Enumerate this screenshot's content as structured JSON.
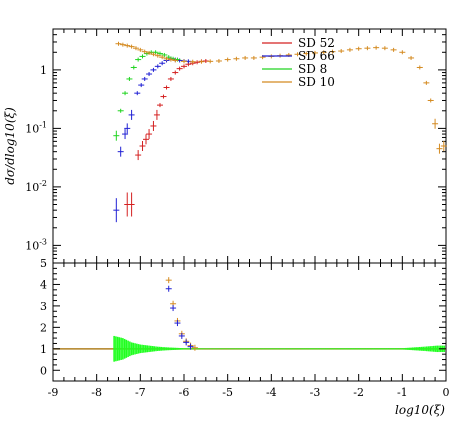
{
  "chart_data": [
    {
      "type": "scatter",
      "panel": "main",
      "ylabel": "dσ/dlog10(ξ)",
      "yscale": "log",
      "xlim": [
        -9,
        0
      ],
      "ylim": [
        0.0005,
        5
      ],
      "ytick_labels": [
        {
          "value": 1,
          "label": "1"
        },
        {
          "value": 0.1,
          "label": "10-1"
        },
        {
          "value": 0.01,
          "label": "10-2"
        },
        {
          "value": 0.001,
          "label": "10-3"
        }
      ],
      "legend_position": "top-right",
      "series": [
        {
          "name": "SD 52",
          "color": "#d42020",
          "points": [
            [
              -7.3,
              0.005
            ],
            [
              -7.2,
              0.005
            ],
            [
              -7.05,
              0.035
            ],
            [
              -6.95,
              0.05
            ],
            [
              -6.87,
              0.065
            ],
            [
              -6.8,
              0.08
            ],
            [
              -6.7,
              0.11
            ],
            [
              -6.62,
              0.17
            ],
            [
              -6.55,
              0.25
            ],
            [
              -6.47,
              0.35
            ],
            [
              -6.4,
              0.5
            ],
            [
              -6.3,
              0.7
            ],
            [
              -6.2,
              0.9
            ],
            [
              -6.1,
              1.05
            ],
            [
              -6.0,
              1.15
            ],
            [
              -5.9,
              1.25
            ],
            [
              -5.8,
              1.3
            ],
            [
              -5.7,
              1.35
            ],
            [
              -5.6,
              1.4
            ],
            [
              -5.5,
              1.42
            ]
          ]
        },
        {
          "name": "SD 66",
          "color": "#2020d4",
          "points": [
            [
              -7.55,
              0.004
            ],
            [
              -7.45,
              0.04
            ],
            [
              -7.35,
              0.08
            ],
            [
              -7.3,
              0.1
            ],
            [
              -7.2,
              0.17
            ],
            [
              -7.07,
              0.4
            ],
            [
              -6.98,
              0.55
            ],
            [
              -6.9,
              0.7
            ],
            [
              -6.8,
              0.85
            ],
            [
              -6.7,
              1.0
            ],
            [
              -6.6,
              1.15
            ],
            [
              -6.5,
              1.3
            ],
            [
              -6.4,
              1.45
            ],
            [
              -6.3,
              1.55
            ],
            [
              -6.2,
              1.5
            ],
            [
              -6.1,
              1.45
            ],
            [
              -6.0,
              1.42
            ],
            [
              -5.9,
              1.4
            ]
          ]
        },
        {
          "name": "SD 8",
          "color": "#20d420",
          "points": [
            [
              -7.55,
              0.075
            ],
            [
              -7.45,
              0.2
            ],
            [
              -7.35,
              0.4
            ],
            [
              -7.25,
              0.7
            ],
            [
              -7.15,
              1.1
            ],
            [
              -7.05,
              1.5
            ],
            [
              -6.95,
              1.7
            ],
            [
              -6.85,
              1.9
            ],
            [
              -6.75,
              2.0
            ],
            [
              -6.65,
              2.0
            ],
            [
              -6.55,
              1.9
            ],
            [
              -6.45,
              1.8
            ],
            [
              -6.35,
              1.65
            ],
            [
              -6.25,
              1.55
            ],
            [
              -6.15,
              1.5
            ]
          ]
        },
        {
          "name": "SD 10",
          "color": "#d48a20",
          "points": [
            [
              -7.5,
              2.8
            ],
            [
              -7.4,
              2.7
            ],
            [
              -7.3,
              2.6
            ],
            [
              -7.2,
              2.5
            ],
            [
              -7.1,
              2.35
            ],
            [
              -7.0,
              2.2
            ],
            [
              -6.9,
              2.05
            ],
            [
              -6.8,
              1.95
            ],
            [
              -6.7,
              1.85
            ],
            [
              -6.6,
              1.75
            ],
            [
              -6.5,
              1.65
            ],
            [
              -6.4,
              1.55
            ],
            [
              -6.3,
              1.5
            ],
            [
              -6.2,
              1.45
            ],
            [
              -6.0,
              1.4
            ],
            [
              -5.8,
              1.38
            ],
            [
              -5.6,
              1.38
            ],
            [
              -5.4,
              1.4
            ],
            [
              -5.2,
              1.42
            ],
            [
              -5.0,
              1.5
            ],
            [
              -4.8,
              1.55
            ],
            [
              -4.6,
              1.6
            ],
            [
              -4.4,
              1.6
            ],
            [
              -4.2,
              1.65
            ],
            [
              -4.0,
              1.7
            ],
            [
              -3.8,
              1.75
            ],
            [
              -3.6,
              1.8
            ],
            [
              -3.4,
              1.85
            ],
            [
              -3.2,
              1.9
            ],
            [
              -3.0,
              1.95
            ],
            [
              -2.8,
              2.0
            ],
            [
              -2.6,
              2.05
            ],
            [
              -2.4,
              2.1
            ],
            [
              -2.2,
              2.2
            ],
            [
              -2.0,
              2.3
            ],
            [
              -1.8,
              2.35
            ],
            [
              -1.6,
              2.4
            ],
            [
              -1.4,
              2.35
            ],
            [
              -1.2,
              2.2
            ],
            [
              -1.0,
              2.0
            ],
            [
              -0.8,
              1.6
            ],
            [
              -0.6,
              1.1
            ],
            [
              -0.45,
              0.6
            ],
            [
              -0.35,
              0.3
            ],
            [
              -0.25,
              0.12
            ],
            [
              -0.15,
              0.045
            ],
            [
              -0.05,
              0.05
            ]
          ]
        }
      ]
    },
    {
      "type": "scatter",
      "panel": "ratio",
      "xlabel": "log10(ξ)",
      "xlim": [
        -9,
        0
      ],
      "ylim": [
        -0.5,
        5
      ],
      "xticks": [
        -9,
        -8,
        -7,
        -6,
        -5,
        -4,
        -3,
        -2,
        -1,
        0
      ],
      "yticks": [
        0,
        1,
        2,
        3,
        4,
        5
      ],
      "reference_line": 1,
      "series": [
        {
          "name": "SD 10 ratio",
          "color": "#d48a20",
          "points": [
            [
              -6.35,
              4.2
            ],
            [
              -6.25,
              3.1
            ],
            [
              -6.15,
              2.3
            ],
            [
              -6.05,
              1.7
            ],
            [
              -5.95,
              1.35
            ],
            [
              -5.85,
              1.15
            ],
            [
              -5.75,
              1.05
            ]
          ]
        },
        {
          "name": "SD 66 ratio",
          "color": "#2020d4",
          "points": [
            [
              -6.35,
              3.8
            ],
            [
              -6.25,
              2.9
            ],
            [
              -6.15,
              2.2
            ],
            [
              -6.05,
              1.6
            ],
            [
              -5.95,
              1.3
            ],
            [
              -5.85,
              1.1
            ]
          ]
        },
        {
          "name": "SD 8 band",
          "color": "#20ff20",
          "band": [
            [
              -7.6,
              0.6
            ],
            [
              -7.4,
              0.5
            ],
            [
              -7.2,
              0.3
            ],
            [
              -7.0,
              0.2
            ],
            [
              -6.8,
              0.15
            ],
            [
              -6.6,
              0.1
            ],
            [
              -6.4,
              0.07
            ],
            [
              -6.2,
              0.05
            ],
            [
              -6.0,
              0.03
            ],
            [
              -5.5,
              0.02
            ],
            [
              -5.0,
              0.02
            ],
            [
              -1.0,
              0.03
            ],
            [
              -0.5,
              0.1
            ],
            [
              -0.2,
              0.15
            ],
            [
              0,
              0.15
            ]
          ]
        }
      ]
    }
  ]
}
